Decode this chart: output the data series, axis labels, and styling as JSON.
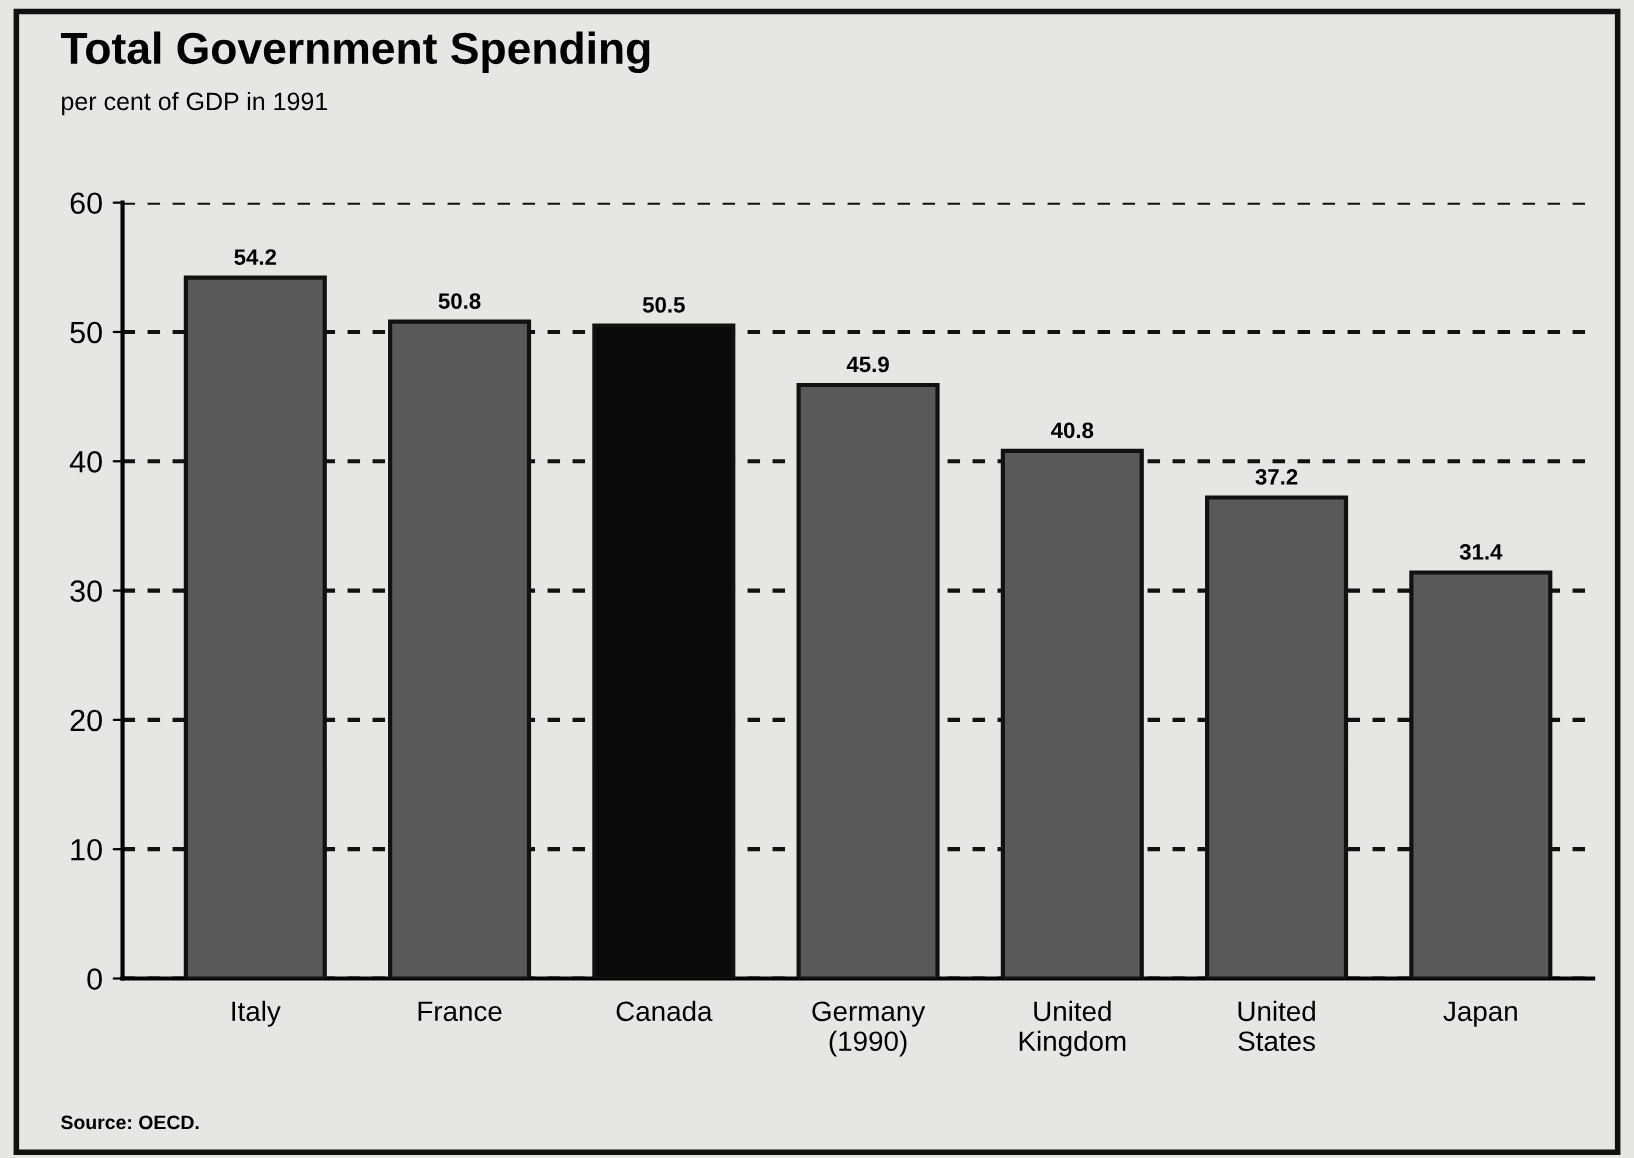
{
  "chart_data": {
    "type": "bar",
    "title": "Total Government Spending",
    "subtitle": "per cent of GDP in 1991",
    "categories": [
      "Italy",
      "France",
      "Canada",
      "Germany\n(1990)",
      "United\nKingdom",
      "United\nStates",
      "Japan"
    ],
    "values": [
      54.2,
      50.8,
      50.5,
      45.9,
      40.8,
      37.2,
      31.4
    ],
    "colors": [
      "#595959",
      "#595959",
      "#0a0a0a",
      "#595959",
      "#595959",
      "#595959",
      "#595959"
    ],
    "data_labels": true,
    "ylim": [
      0,
      60
    ],
    "yticks": [
      0,
      10,
      20,
      30,
      40,
      50,
      60
    ],
    "grid": "y",
    "legend": false,
    "annotations": [
      "Source: OECD."
    ]
  }
}
